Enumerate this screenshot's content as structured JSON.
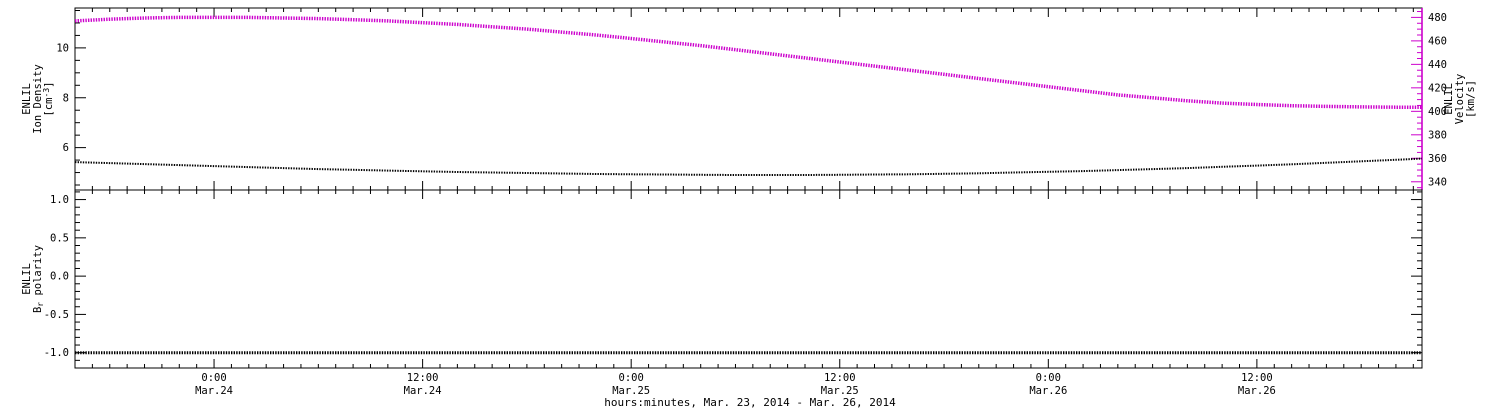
{
  "figure": {
    "background_color": "#ffffff",
    "frame_color": "#000000"
  },
  "chart_data": {
    "type": "line",
    "x_title": "hours:minutes, Mar. 23, 2014 - Mar. 26, 2014",
    "x_range_hours": [
      0,
      77.5
    ],
    "x_minor_step_hours": 1,
    "x_ticks": [
      {
        "hour": 8,
        "time": "0:00",
        "date": "Mar.24"
      },
      {
        "hour": 20,
        "time": "12:00",
        "date": "Mar.24"
      },
      {
        "hour": 32,
        "time": "0:00",
        "date": "Mar.25"
      },
      {
        "hour": 44,
        "time": "12:00",
        "date": "Mar.25"
      },
      {
        "hour": 56,
        "time": "0:00",
        "date": "Mar.26"
      },
      {
        "hour": 68,
        "time": "12:00",
        "date": "Mar.26"
      }
    ],
    "x_hours": [
      0,
      2,
      4,
      6,
      8,
      10,
      12,
      14,
      16,
      18,
      20,
      22,
      24,
      26,
      28,
      30,
      32,
      34,
      36,
      38,
      40,
      42,
      44,
      46,
      48,
      50,
      52,
      54,
      56,
      58,
      60,
      62,
      64,
      66,
      68,
      70,
      72,
      74,
      76,
      77.5
    ],
    "panels": [
      {
        "id": "density-velocity",
        "left_axis": {
          "title_lines": [
            "ENLIL",
            "Ion Density",
            "[cm⁻³]"
          ],
          "tick_values": [
            6,
            8,
            10
          ],
          "tick_labels": [
            "6",
            "8",
            "10"
          ],
          "minor_step": 0.5,
          "range": [
            4.3,
            11.6
          ],
          "color": "#000000"
        },
        "right_axis": {
          "title_lines": [
            "ENLIL",
            "Velocity",
            "[km/s]"
          ],
          "tick_values": [
            340,
            360,
            380,
            400,
            420,
            440,
            460,
            480
          ],
          "tick_labels": [
            "340",
            "360",
            "380",
            "400",
            "420",
            "440",
            "460",
            "480"
          ],
          "minor_step": 5,
          "range": [
            333,
            488
          ],
          "color": "#cc00cc"
        },
        "series": [
          {
            "name": "ion-density",
            "label": "ENLIL Ion Density [cm⁻³]",
            "axis": "left",
            "color": "#000000",
            "values": [
              5.42,
              5.38,
              5.34,
              5.3,
              5.26,
              5.22,
              5.18,
              5.14,
              5.11,
              5.08,
              5.05,
              5.02,
              5.0,
              4.98,
              4.96,
              4.94,
              4.93,
              4.92,
              4.91,
              4.9,
              4.9,
              4.9,
              4.91,
              4.92,
              4.93,
              4.95,
              4.97,
              5.0,
              5.03,
              5.06,
              5.1,
              5.14,
              5.18,
              5.23,
              5.28,
              5.33,
              5.39,
              5.45,
              5.51,
              5.56
            ]
          },
          {
            "name": "velocity",
            "label": "ENLIL Velocity [km/s]",
            "axis": "right",
            "color": "#cc00cc",
            "values": [
              477,
              478.5,
              479.5,
              480,
              480,
              480,
              479.5,
              479,
              478,
              477,
              475.5,
              474,
              472,
              470,
              467.5,
              465,
              462,
              459,
              456,
              452.5,
              449,
              445.5,
              442,
              438.5,
              435,
              431.5,
              428,
              424.5,
              421,
              417.5,
              414,
              411.5,
              409,
              407,
              405.8,
              404.8,
              404.2,
              403.8,
              403.5,
              403.4
            ]
          }
        ]
      },
      {
        "id": "br-polarity",
        "left_axis": {
          "title_lines": [
            "ENLIL",
            "Bᵣ polarity"
          ],
          "tick_values": [
            -1.0,
            -0.5,
            0.0,
            0.5,
            1.0
          ],
          "tick_labels": [
            "-1.0",
            "-0.5",
            "0.0",
            "0.5",
            "1.0"
          ],
          "minor_step": 0.1,
          "range": [
            -1.2,
            1.125
          ],
          "color": "#000000"
        },
        "right_axis": {
          "title_lines": [],
          "tick_values": [
            -1.0,
            -0.5,
            0.0,
            0.5,
            1.0
          ],
          "tick_labels": [],
          "minor_step": 0.1,
          "range": [
            -1.2,
            1.125
          ],
          "color": "#000000"
        },
        "series": [
          {
            "name": "br-polarity",
            "label": "ENLIL Bᵣ polarity",
            "axis": "left",
            "color": "#000000",
            "values": [
              -1,
              -1,
              -1,
              -1,
              -1,
              -1,
              -1,
              -1,
              -1,
              -1,
              -1,
              -1,
              -1,
              -1,
              -1,
              -1,
              -1,
              -1,
              -1,
              -1,
              -1,
              -1,
              -1,
              -1,
              -1,
              -1,
              -1,
              -1,
              -1,
              -1,
              -1,
              -1,
              -1,
              -1,
              -1,
              -1,
              -1,
              -1,
              -1,
              -1
            ]
          }
        ]
      }
    ]
  }
}
